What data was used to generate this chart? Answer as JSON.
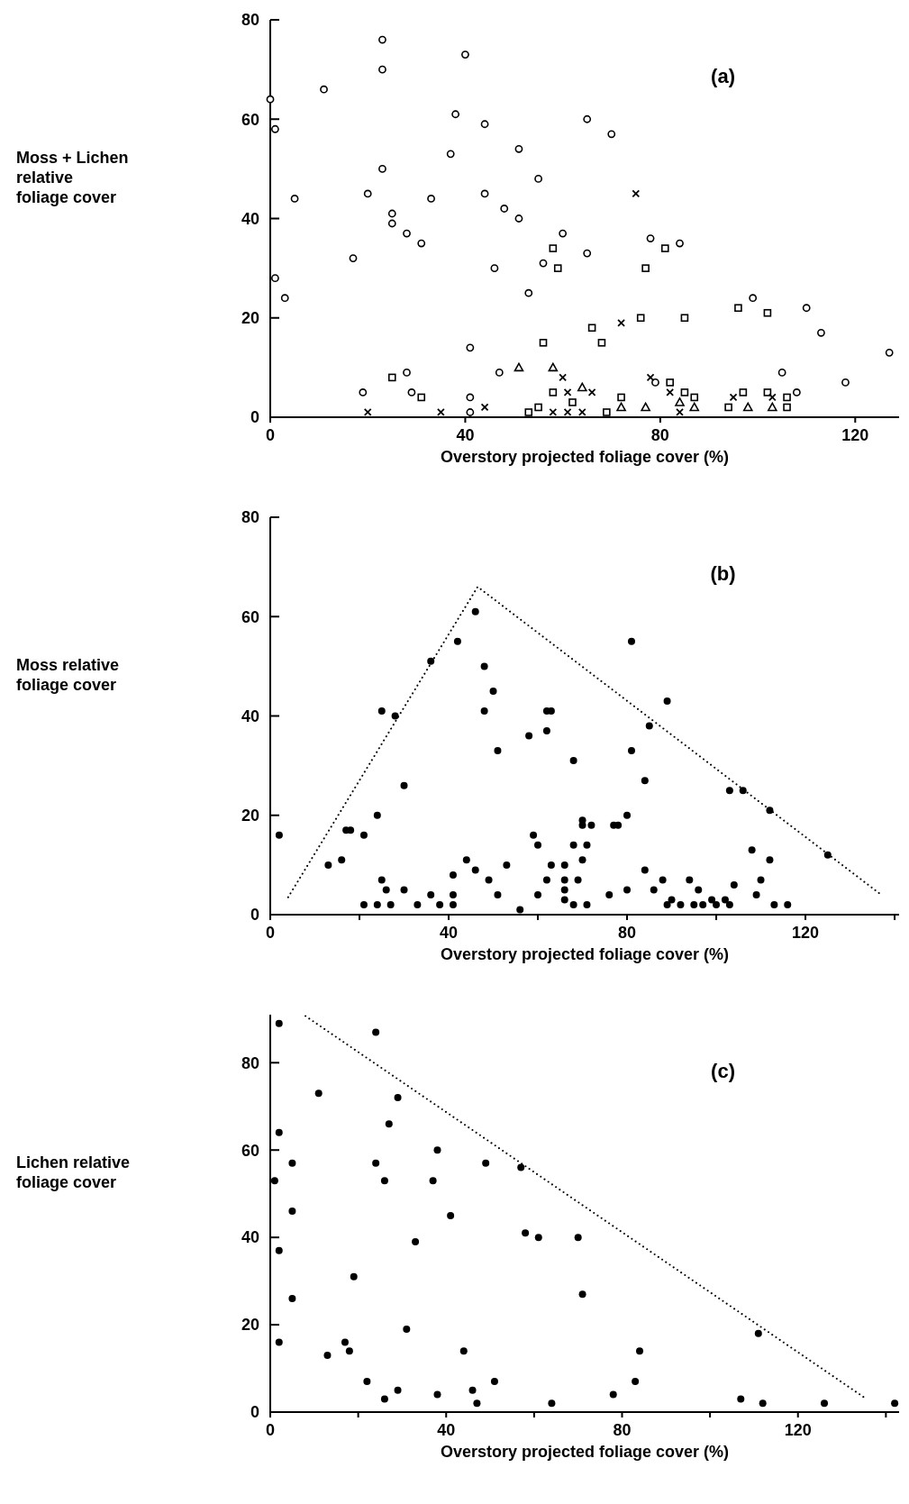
{
  "chart_data": [
    {
      "type": "scatter",
      "xlabel": "Overstory projected foliage cover (%)",
      "ylabel": "Moss + Lichen\nrelative\nfoliage cover",
      "annotations": [
        "(a)"
      ],
      "xlim": [
        0,
        129
      ],
      "ylim": [
        0,
        80
      ],
      "xticks": [
        0,
        40,
        80,
        120
      ],
      "yticks": [
        0,
        20,
        40,
        60,
        80
      ],
      "series": [
        {
          "color": "#000000",
          "marker": "circle",
          "x": [
            23,
            23,
            40,
            11,
            0,
            1,
            38,
            44,
            37,
            51,
            23,
            55,
            5,
            20,
            33,
            44,
            48,
            51,
            25,
            25,
            28,
            31,
            60,
            17,
            56,
            46,
            1,
            3,
            53,
            41,
            47,
            28,
            19,
            29,
            41,
            41,
            65,
            70,
            65,
            78,
            84,
            99,
            110,
            113,
            127,
            105,
            118,
            108,
            79
          ],
          "values": [
            76,
            70,
            73,
            66,
            64,
            58,
            61,
            59,
            53,
            54,
            50,
            48,
            44,
            45,
            44,
            45,
            42,
            40,
            41,
            39,
            37,
            35,
            37,
            32,
            31,
            30,
            28,
            24,
            25,
            14,
            9,
            9,
            5,
            5,
            4,
            1,
            60,
            57,
            33,
            36,
            35,
            24,
            22,
            17,
            13,
            9,
            7,
            5,
            7
          ]
        },
        {
          "color": "#000000",
          "marker": "square",
          "x": [
            25,
            31,
            56,
            58,
            59,
            53,
            55,
            58,
            62,
            66,
            68,
            76,
            77,
            81,
            85,
            96,
            102,
            72,
            69,
            82,
            85,
            87,
            94,
            97,
            102,
            106,
            106
          ],
          "values": [
            8,
            4,
            15,
            34,
            30,
            1,
            2,
            5,
            3,
            18,
            15,
            20,
            30,
            34,
            20,
            22,
            21,
            4,
            1,
            7,
            5,
            4,
            2,
            5,
            5,
            4,
            2
          ]
        },
        {
          "color": "#000000",
          "marker": "triangle",
          "x": [
            51,
            58,
            64,
            72,
            77,
            84,
            87,
            98,
            103
          ],
          "values": [
            10,
            10,
            6,
            2,
            2,
            3,
            2,
            2,
            2
          ]
        },
        {
          "color": "#000000",
          "marker": "cross",
          "x": [
            20,
            35,
            44,
            58,
            61,
            60,
            61,
            75,
            72,
            66,
            64,
            78,
            82,
            84,
            95,
            103
          ],
          "values": [
            1,
            1,
            2,
            1,
            1,
            8,
            5,
            45,
            19,
            5,
            1,
            8,
            5,
            1,
            4,
            4
          ]
        }
      ]
    },
    {
      "type": "scatter",
      "xlabel": "Overstory projected foliage cover (%)",
      "ylabel": "Moss relative\nfoliage cover",
      "annotations": [
        "(b)"
      ],
      "xlim": [
        0,
        141
      ],
      "ylim": [
        0,
        80
      ],
      "xticks": [
        0,
        {
          "value": 20,
          "label": null
        },
        40,
        {
          "value": 60,
          "label": null
        },
        80,
        {
          "value": 100,
          "label": null
        },
        120,
        {
          "value": 140,
          "label": null
        }
      ],
      "yticks": [
        0,
        20,
        40,
        60,
        80
      ],
      "series": [
        {
          "color": "#000000",
          "marker": "circle",
          "x": [
            2,
            13,
            16,
            17,
            18,
            21,
            24,
            25,
            28,
            30,
            25,
            26,
            21,
            24,
            27,
            30,
            33,
            36,
            38,
            41,
            41,
            41,
            36,
            42,
            46,
            48,
            50,
            48,
            51,
            44,
            46,
            49,
            53,
            51,
            56,
            58,
            62,
            63,
            62,
            59,
            60,
            63,
            62,
            60,
            66,
            66,
            66,
            66,
            68,
            68,
            68,
            70,
            69,
            71,
            70,
            70,
            72,
            71,
            76,
            77,
            78,
            80,
            80,
            81,
            81,
            84,
            85,
            89,
            84,
            86,
            88,
            90,
            89,
            92,
            94,
            95,
            96,
            97,
            99,
            100,
            102,
            103,
            104,
            103,
            106,
            108,
            110,
            109,
            112,
            112,
            113,
            116,
            125
          ],
          "values": [
            16,
            10,
            11,
            17,
            17,
            16,
            20,
            41,
            40,
            26,
            7,
            5,
            2,
            2,
            2,
            5,
            2,
            4,
            2,
            4,
            2,
            8,
            51,
            55,
            61,
            50,
            45,
            41,
            33,
            11,
            9,
            7,
            10,
            4,
            1,
            36,
            41,
            41,
            37,
            16,
            14,
            10,
            7,
            4,
            10,
            7,
            5,
            3,
            2,
            31,
            14,
            11,
            7,
            14,
            18,
            19,
            18,
            2,
            4,
            18,
            18,
            5,
            20,
            33,
            55,
            27,
            38,
            43,
            9,
            5,
            7,
            3,
            2,
            2,
            7,
            2,
            5,
            2,
            3,
            2,
            3,
            2,
            6,
            25,
            25,
            13,
            7,
            4,
            21,
            11,
            2,
            2,
            12
          ]
        },
        {
          "type": "line",
          "color": "#000000",
          "marker": "none",
          "line_style": "dotted",
          "x": [
            4,
            46.5,
            137
          ],
          "values": [
            3.5,
            66,
            4
          ]
        }
      ]
    },
    {
      "type": "scatter",
      "xlabel": "Overstory projected foliage cover (%)",
      "ylabel": "Lichen relative\nfoliage cover",
      "annotations": [
        "(c)"
      ],
      "xlim": [
        0,
        143
      ],
      "ylim": [
        0,
        91
      ],
      "xticks": [
        0,
        {
          "value": 20,
          "label": null
        },
        40,
        {
          "value": 60,
          "label": null
        },
        80,
        {
          "value": 100,
          "label": null
        },
        120,
        {
          "value": 140,
          "label": null
        }
      ],
      "yticks": [
        0,
        20,
        40,
        60,
        80
      ],
      "series": [
        {
          "color": "#000000",
          "marker": "circle",
          "x": [
            2,
            24,
            11,
            29,
            2,
            27,
            5,
            24,
            38,
            49,
            57,
            1,
            26,
            37,
            5,
            41,
            58,
            61,
            33,
            2,
            19,
            5,
            31,
            2,
            17,
            18,
            13,
            44,
            22,
            29,
            51,
            26,
            38,
            46,
            47,
            64,
            70,
            71,
            111,
            84,
            83,
            78,
            107,
            112,
            126,
            142
          ],
          "values": [
            89,
            87,
            73,
            72,
            64,
            66,
            57,
            57,
            60,
            57,
            56,
            53,
            53,
            53,
            46,
            45,
            41,
            40,
            39,
            37,
            31,
            26,
            19,
            16,
            16,
            14,
            13,
            14,
            7,
            5,
            7,
            3,
            4,
            5,
            2,
            2,
            40,
            27,
            18,
            14,
            7,
            4,
            3,
            2,
            2,
            2
          ]
        },
        {
          "type": "line",
          "color": "#000000",
          "marker": "none",
          "line_style": "dotted",
          "x": [
            8,
            135
          ],
          "values": [
            90.7,
            3.4
          ]
        }
      ]
    }
  ]
}
